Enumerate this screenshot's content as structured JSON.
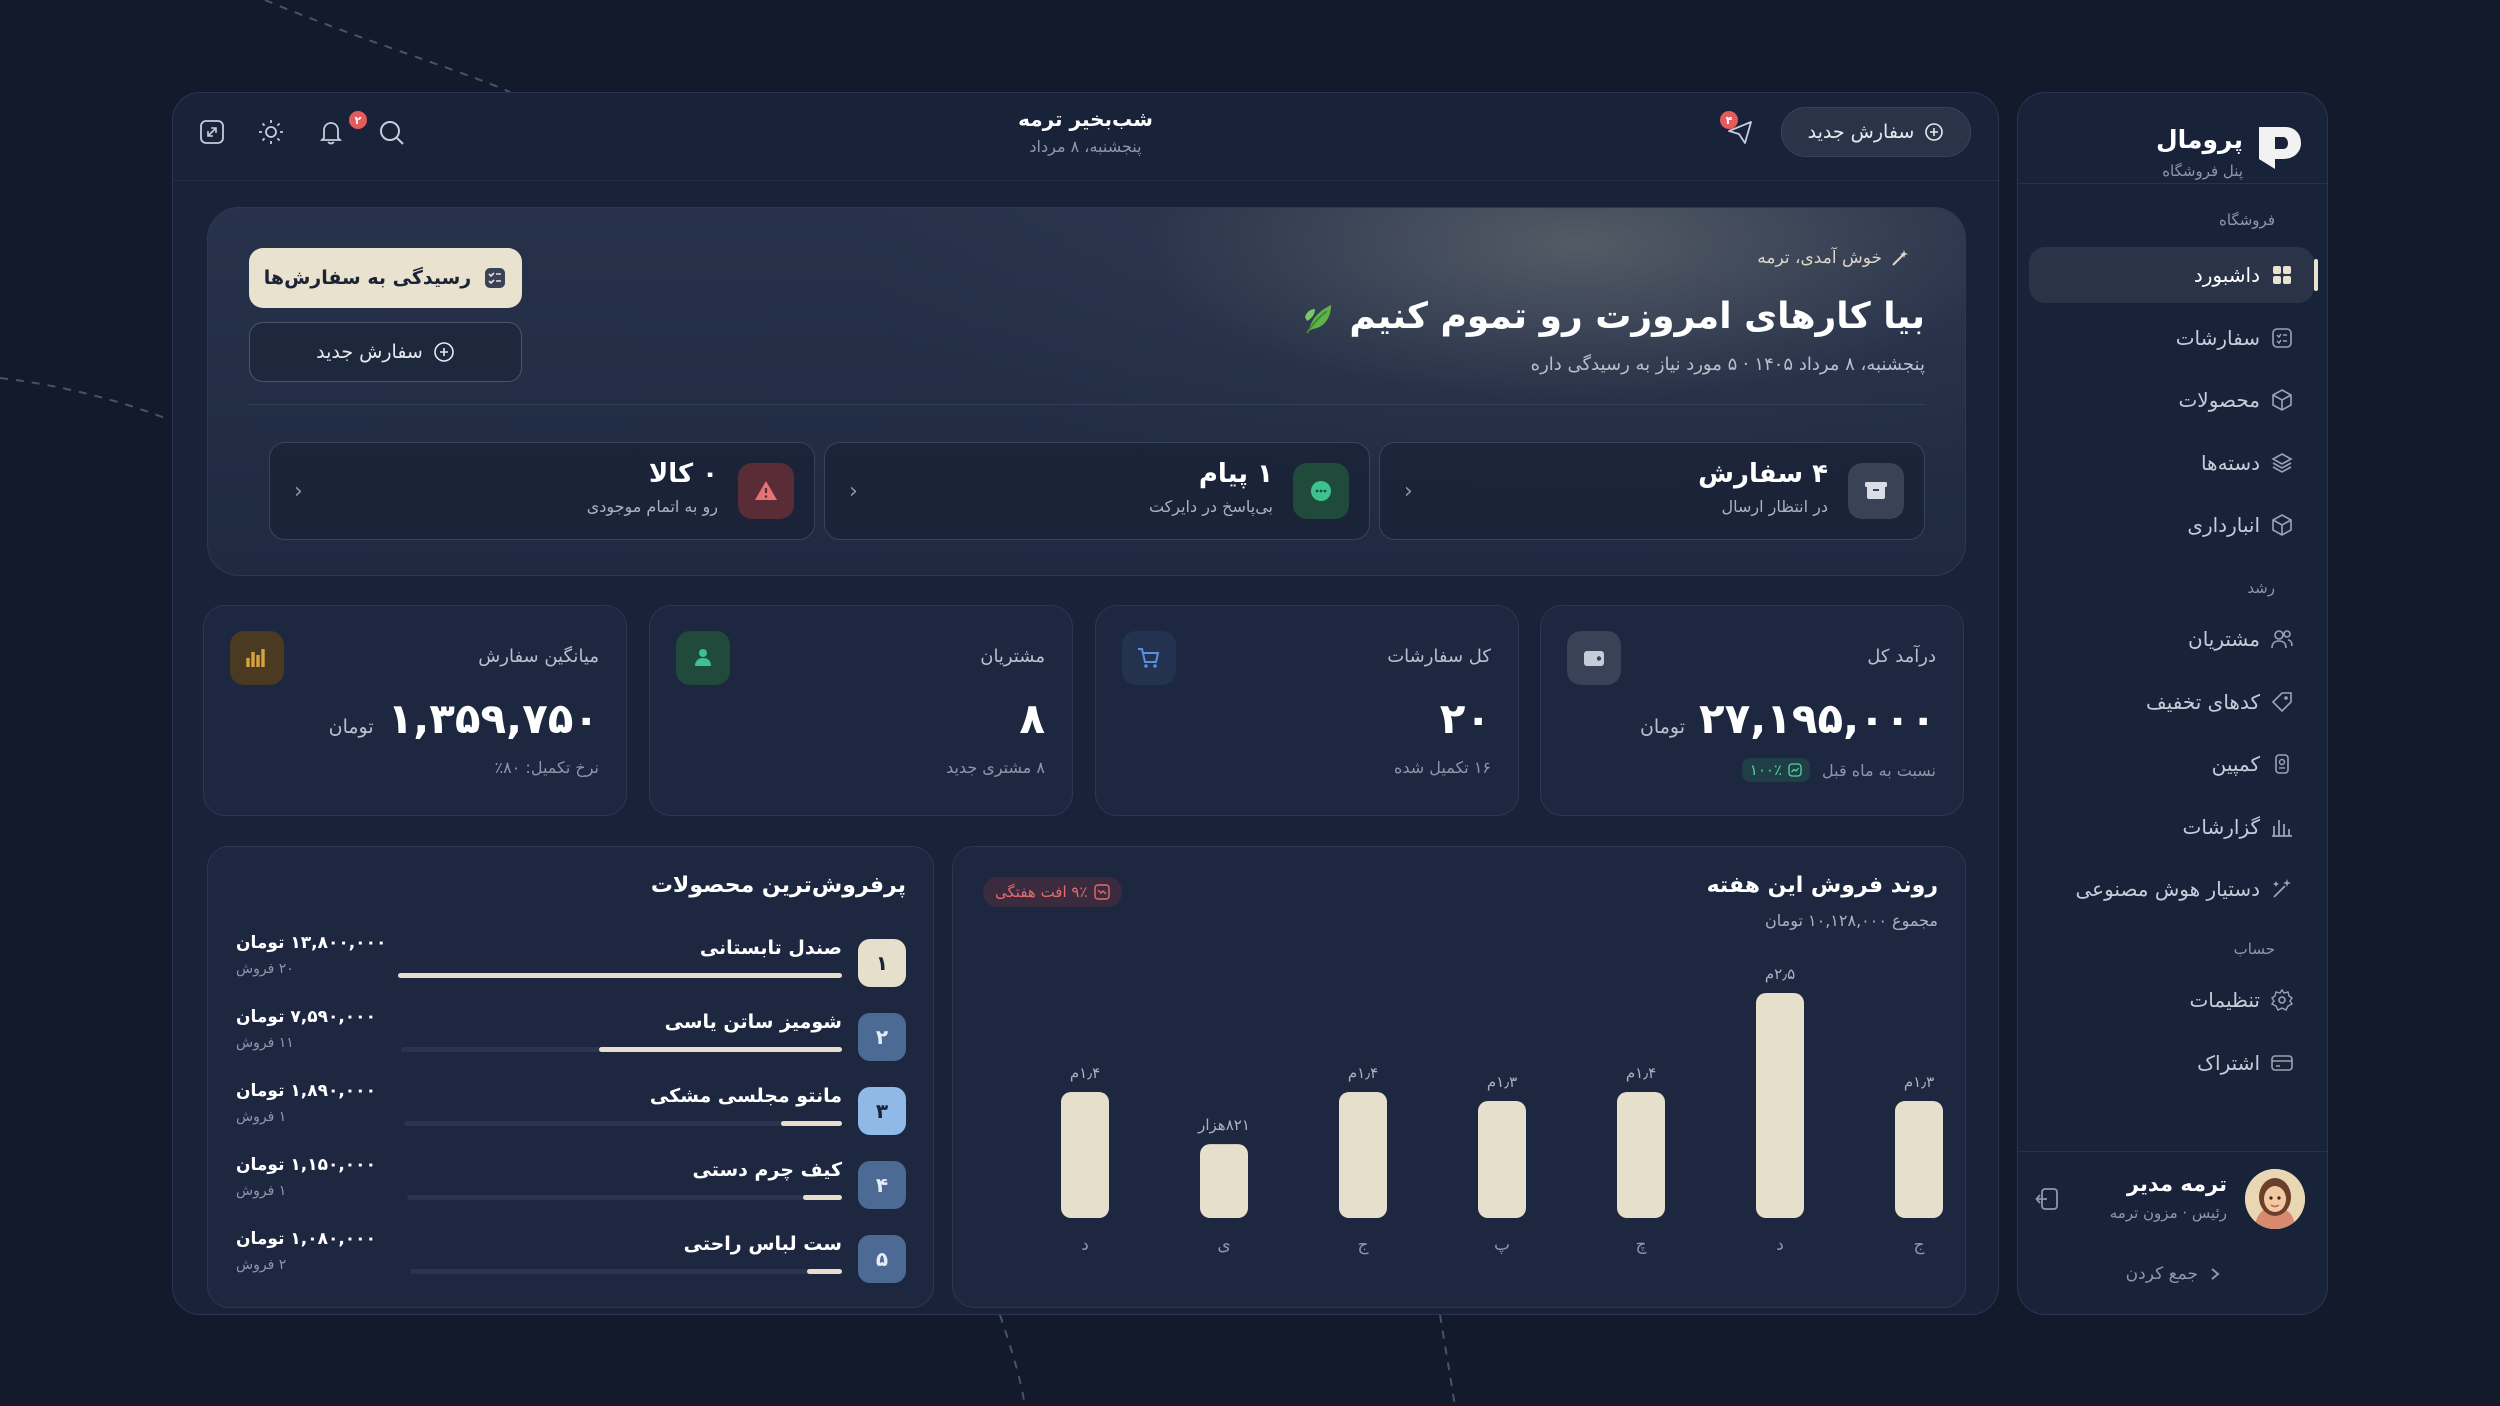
{
  "sidebar": {
    "brand_name": "پرومال",
    "brand_sub": "پنل فروشگاه",
    "section_store": "فروشگاه",
    "section_growth": "رشد",
    "section_account": "حساب",
    "items_store": [
      {
        "label": "داشبورد",
        "icon": "grid-icon",
        "active": true
      },
      {
        "label": "سفارشات",
        "icon": "checklist-icon"
      },
      {
        "label": "محصولات",
        "icon": "box-icon"
      },
      {
        "label": "دسته‌ها",
        "icon": "layers-icon"
      },
      {
        "label": "انبارداری",
        "icon": "cube-icon"
      }
    ],
    "items_growth": [
      {
        "label": "مشتریان",
        "icon": "users-icon"
      },
      {
        "label": "کدهای تخفیف",
        "icon": "tag-icon"
      },
      {
        "label": "کمپین",
        "icon": "mic-icon"
      },
      {
        "label": "گزارشات",
        "icon": "bars-icon"
      },
      {
        "label": "دستیار هوش مصنوعی",
        "icon": "magic-wand-icon"
      }
    ],
    "items_account": [
      {
        "label": "تنظیمات",
        "icon": "gear-icon"
      },
      {
        "label": "اشتراک",
        "icon": "card-icon"
      }
    ],
    "user_name": "ترمه مدیر",
    "user_role": "رئیس · مزون ترمه",
    "collapse_label": "جمع کردن"
  },
  "topbar": {
    "greeting": "شب‌بخیر ترمه",
    "date": "پنجشنبه، ۸ مرداد",
    "new_order": "سفارش جدید",
    "send_badge": "۴",
    "bell_badge": "۲"
  },
  "hero": {
    "welcome": "خوش آمدی، ترمه",
    "title": "بیا کارهای امروزت رو تموم کنیم",
    "subtitle": "پنجشنبه، ۸ مرداد ۱۴۰۵ · ۵ مورد نیاز به رسیدگی داره",
    "btn_review": "رسیدگی به سفارش‌ها",
    "btn_new": "سفارش جدید",
    "tasks": [
      {
        "title": "۴ سفارش",
        "sub": "در انتظار ارسال",
        "icon": "archive-icon"
      },
      {
        "title": "۱ پیام",
        "sub": "بی‌پاسخ در دایرکت",
        "icon": "chat-icon"
      },
      {
        "title": "۰ کالا",
        "sub": "رو به اتمام موجودی",
        "icon": "warning-icon"
      }
    ]
  },
  "stats": [
    {
      "label": "درآمد کل",
      "value": "۲۷,۱۹۵,۰۰۰",
      "unit": "تومان",
      "foot": "نسبت به ماه قبل",
      "pill": "۱۰۰٪",
      "icon": "wallet-icon",
      "color": "#9aa3b5"
    },
    {
      "label": "کل سفارشات",
      "value": "۲۰",
      "unit": "",
      "foot": "۱۶ تکمیل شده",
      "icon": "cart-icon",
      "color": "#5b8fe0"
    },
    {
      "label": "مشتریان",
      "value": "۸",
      "unit": "",
      "foot": "۸ مشتری جدید",
      "icon": "user-icon",
      "color": "#3cc28e"
    },
    {
      "label": "میانگین سفارش",
      "value": "۱,۳۵۹,۷۵۰",
      "unit": "تومان",
      "foot": "نرخ تکمیل: ۸۰٪",
      "icon": "chart-icon",
      "color": "#d9a23c"
    }
  ],
  "chart": {
    "title": "روند فروش این هفته",
    "subtitle": "مجموع ۱۰,۱۲۸,۰۰۰ تومان",
    "pill": "۹٪ افت هفتگی"
  },
  "chart_data": {
    "type": "bar",
    "categories": [
      "ج",
      "د",
      "چ",
      "پ",
      "ج",
      "ی",
      "د"
    ],
    "values": [
      1.3,
      2.5,
      1.4,
      1.3,
      1.4,
      0.821,
      1.4
    ],
    "data_labels": [
      "۱٫۳م",
      "۲٫۵م",
      "۱٫۴م",
      "۱٫۳م",
      "۱٫۴م",
      "۸۲۱هزار",
      "۱٫۴م"
    ],
    "ylim": [
      0,
      2.5
    ]
  },
  "products": {
    "title": "پرفروش‌ترین محصولات",
    "items": [
      {
        "rank": "۱",
        "name": "صندل تابستانی",
        "price": "۱۳,۸۰۰,۰۰۰ تومان",
        "sales": "۲۰ فروش",
        "share": 1.0
      },
      {
        "rank": "۲",
        "name": "شومیز ساتن یاسی",
        "price": "۷,۵۹۰,۰۰۰ تومان",
        "sales": "۱۱ فروش",
        "share": 0.55
      },
      {
        "rank": "۳",
        "name": "مانتو مجلسی مشکی",
        "price": "۱,۸۹۰,۰۰۰ تومان",
        "sales": "۱ فروش",
        "share": 0.14
      },
      {
        "rank": "۴",
        "name": "کیف چرم دستی",
        "price": "۱,۱۵۰,۰۰۰ تومان",
        "sales": "۱ فروش",
        "share": 0.09
      },
      {
        "rank": "۵",
        "name": "ست لباس راحتی",
        "price": "۱,۰۸۰,۰۰۰ تومان",
        "sales": "۲ فروش",
        "share": 0.08
      }
    ]
  }
}
